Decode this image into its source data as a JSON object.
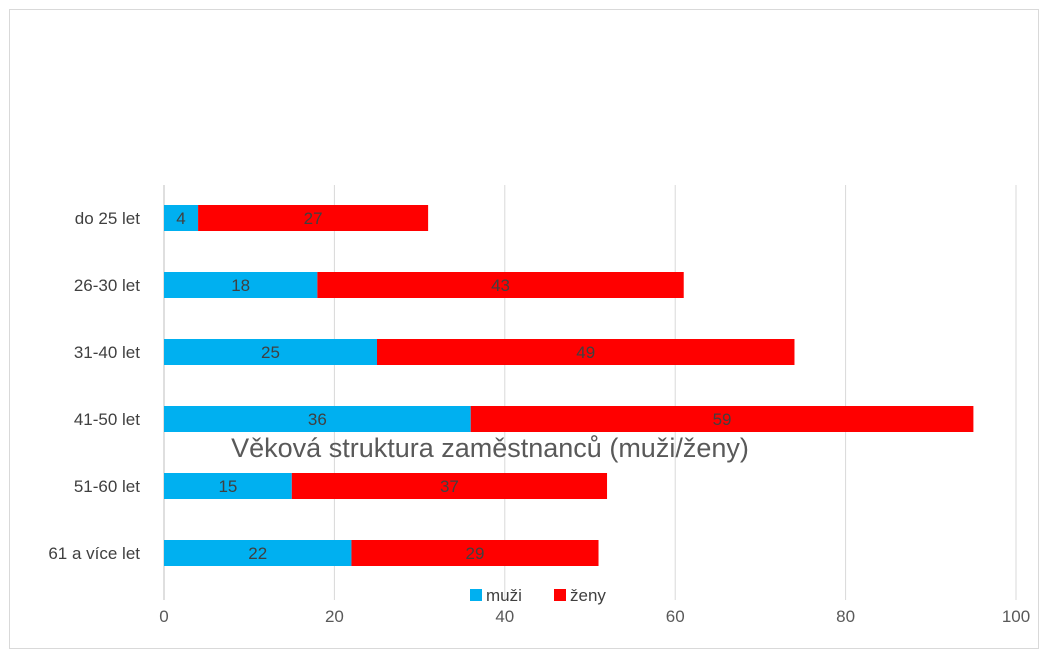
{
  "chart_data": {
    "type": "bar",
    "orientation": "horizontal",
    "stacked": true,
    "title": "Věková struktura zaměstnanců (muži/ženy)",
    "categories": [
      "do 25 let",
      "26-30 let",
      "31-40 let",
      "41-50 let",
      "51-60 let",
      "61 a více let"
    ],
    "series": [
      {
        "name": "muži",
        "color": "#00b0f0",
        "values": [
          4,
          18,
          25,
          36,
          15,
          22
        ]
      },
      {
        "name": "ženy",
        "color": "#ff0000",
        "values": [
          27,
          43,
          49,
          59,
          37,
          29
        ]
      }
    ],
    "xticks": [
      "0",
      "20",
      "40",
      "60",
      "80",
      "100"
    ],
    "xlim": [
      0,
      100
    ],
    "grid": true,
    "legend": "bottom"
  }
}
